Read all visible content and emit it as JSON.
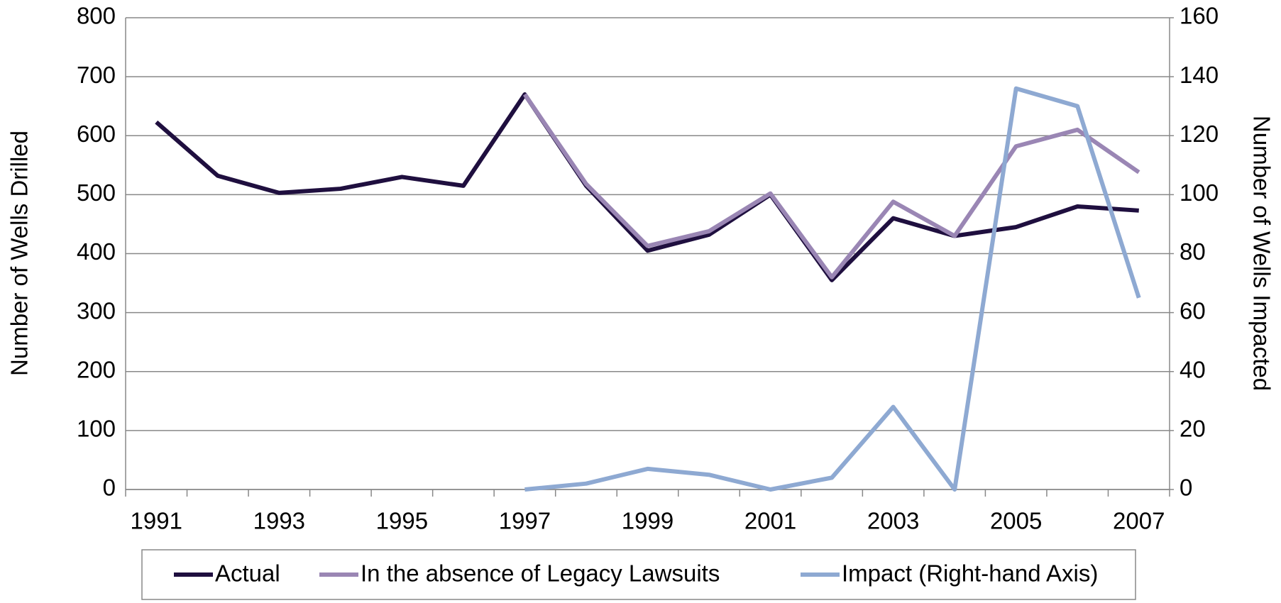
{
  "chart_data": {
    "type": "line",
    "categories": [
      "1991",
      null,
      "1993",
      null,
      "1995",
      null,
      "1997",
      null,
      "1999",
      null,
      "2001",
      null,
      "2003",
      null,
      "2005",
      null,
      "2007"
    ],
    "y_label": "Number of Wells Drilled",
    "y2_label": "Number of Wells Impacted",
    "ylim": [
      0,
      800
    ],
    "yticks": [
      0,
      100,
      200,
      300,
      400,
      500,
      600,
      700,
      800
    ],
    "y2lim": [
      0,
      160
    ],
    "y2ticks": [
      0,
      20,
      40,
      60,
      80,
      100,
      120,
      140,
      160
    ],
    "grid": true,
    "legend": "bottom",
    "series": [
      {
        "name": "Actual",
        "color": "#1f0f3f",
        "values": [
          623,
          532,
          503,
          510,
          530,
          515,
          670,
          515,
          405,
          432,
          500,
          355,
          460,
          430,
          445,
          480,
          473
        ]
      },
      {
        "name": "In the absence of Legacy Lawsuits",
        "color": "#9a86b4",
        "values": [
          null,
          null,
          null,
          null,
          null,
          null,
          670,
          518,
          413,
          438,
          502,
          360,
          488,
          430,
          582,
          610,
          538
        ]
      },
      {
        "name": "Impact (Right-hand Axis)",
        "color": "#8ea9d2",
        "axis": "y2",
        "values": [
          null,
          null,
          null,
          null,
          null,
          null,
          0,
          2,
          7,
          5,
          0,
          4,
          28,
          0,
          136,
          130,
          65
        ]
      }
    ]
  }
}
